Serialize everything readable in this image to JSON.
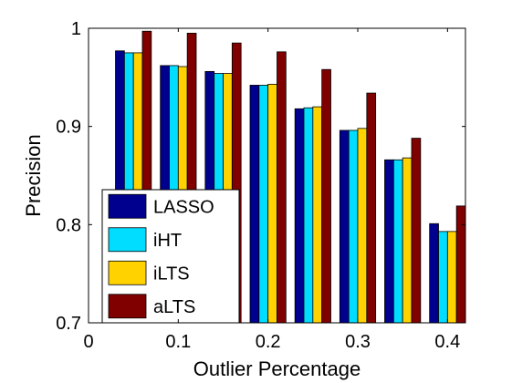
{
  "chart_data": {
    "type": "bar",
    "xlabel": "Outlier Percentage",
    "ylabel": "Precision",
    "xlim": [
      0,
      0.42
    ],
    "ylim": [
      0.7,
      1.0
    ],
    "xticks": [
      "0",
      "0.1",
      "0.2",
      "0.3",
      "0.4"
    ],
    "xtick_values": [
      0,
      0.1,
      0.2,
      0.3,
      0.4
    ],
    "yticks": [
      "0.7",
      "0.8",
      "0.9",
      "1"
    ],
    "ytick_values": [
      0.7,
      0.8,
      0.9,
      1.0
    ],
    "x": [
      0.05,
      0.1,
      0.15,
      0.2,
      0.25,
      0.3,
      0.35,
      0.4
    ],
    "series": [
      {
        "name": "LASSO",
        "color": "#00008f",
        "values": [
          0.977,
          0.962,
          0.956,
          0.942,
          0.918,
          0.896,
          0.866,
          0.801
        ]
      },
      {
        "name": "iHT",
        "color": "#00ddff",
        "values": [
          0.975,
          0.962,
          0.954,
          0.942,
          0.919,
          0.896,
          0.866,
          0.793
        ]
      },
      {
        "name": "iLTS",
        "color": "#ffd200",
        "values": [
          0.975,
          0.961,
          0.954,
          0.943,
          0.92,
          0.898,
          0.868,
          0.793
        ]
      },
      {
        "name": "aLTS",
        "color": "#800000",
        "values": [
          0.997,
          0.995,
          0.985,
          0.976,
          0.958,
          0.934,
          0.888,
          0.819
        ]
      }
    ],
    "grid": false,
    "legend_position": "bottom-left"
  }
}
